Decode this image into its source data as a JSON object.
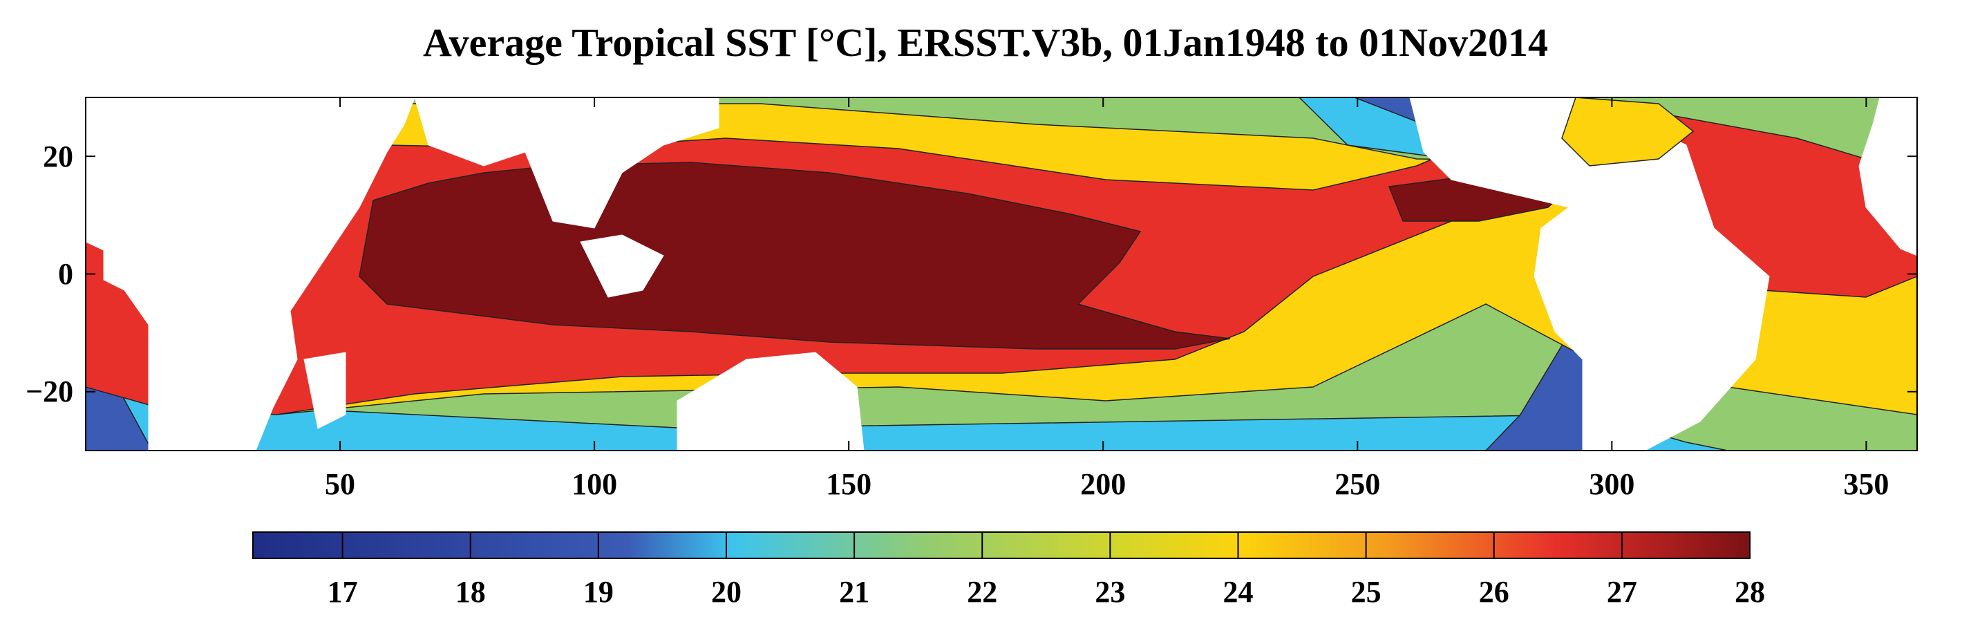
{
  "chart_data": {
    "type": "heatmap",
    "title": "Average Tropical SST [°C], ERSST.V3b, 01Jan1948 to 01Nov2014",
    "x_axis": {
      "ticks": [
        50,
        100,
        150,
        200,
        250,
        300,
        350
      ],
      "range": [
        0,
        360
      ]
    },
    "y_axis": {
      "ticks": [
        20,
        0,
        -20
      ],
      "tick_labels": [
        "20",
        "0",
        "−20"
      ],
      "range": [
        -30,
        30
      ]
    },
    "colorbar": {
      "range": [
        16.3,
        28
      ],
      "ticks": [
        17,
        18,
        19,
        20,
        21,
        22,
        23,
        24,
        25,
        26,
        27,
        28
      ],
      "colors": {
        "deep_blue": "#1f2d86",
        "blue": "#3b5bb5",
        "light_blue": "#3cc4ee",
        "green": "#93cc70",
        "yellow": "#fcd30c",
        "orange": "#f39a1e",
        "red": "#e8302a",
        "dark_red": "#7b1114",
        "land": "#ffffff"
      }
    },
    "contour_levels": [
      20,
      22,
      24,
      26,
      27
    ]
  }
}
